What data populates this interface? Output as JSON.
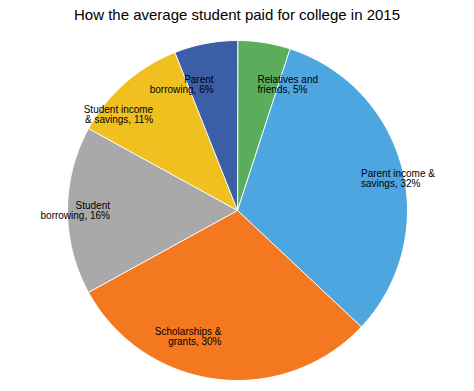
{
  "chart_data": {
    "type": "pie",
    "title": "How the average student paid for college in 2015",
    "categories": [
      "Relatives and\nfriends, 5%",
      "Parent income &\nsavings, 32%",
      "Scholarships &\ngrants, 30%",
      "Student\nborrowing, 16%",
      "Student income\n& savings, 11%",
      "Parent\nborrowing, 6%"
    ],
    "values": [
      5,
      32,
      30,
      16,
      11,
      6
    ],
    "colors": [
      "#5AAD5A",
      "#4DA6E0",
      "#F47820",
      "#A9A9A9",
      "#F0C020",
      "#3B5EA6"
    ]
  }
}
